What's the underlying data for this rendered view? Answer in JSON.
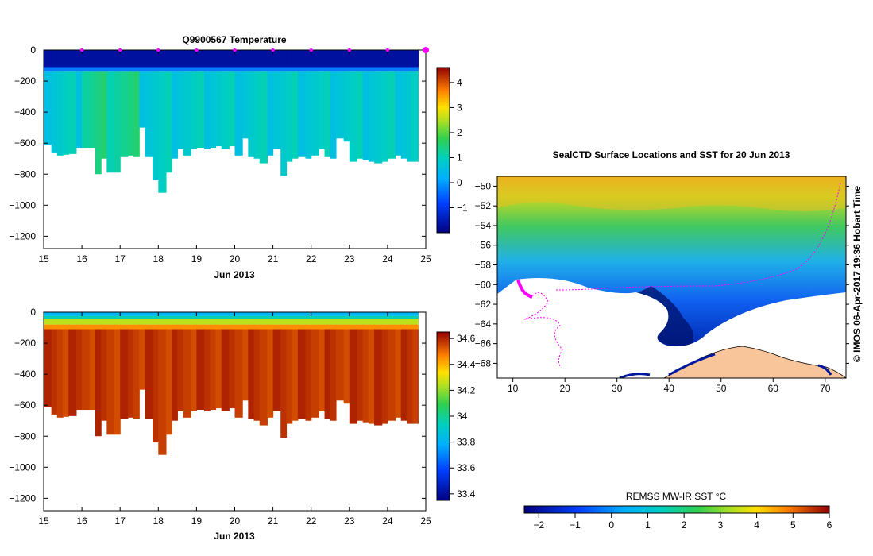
{
  "colors": {
    "land": "#f8c59a",
    "marker": "#ff00ff",
    "axis": "#000000"
  },
  "chart_data": [
    {
      "type": "heatmap",
      "title": "Q9900567  Temperature",
      "xlabel": "Jun 2013",
      "x_ticks": [
        "15",
        "16",
        "17",
        "18",
        "19",
        "20",
        "21",
        "22",
        "23",
        "24",
        "25"
      ],
      "xlim": [
        15,
        25
      ],
      "ylim": [
        -1280,
        0
      ],
      "y_ticks": [
        0,
        -200,
        -400,
        -600,
        -800,
        -1000,
        -1200
      ],
      "y_tick_labels": [
        "0",
        "−200",
        "−400",
        "−600",
        "−800",
        "−1000",
        "−1200"
      ],
      "profile_markers_days": [
        16,
        17,
        18,
        19,
        20,
        21,
        22,
        23,
        24,
        25
      ],
      "profile_times": [
        15.0,
        15.2,
        15.35,
        15.5,
        15.65,
        15.85,
        16.0,
        16.2,
        16.35,
        16.5,
        16.65,
        16.85,
        17.0,
        17.2,
        17.35,
        17.5,
        17.65,
        17.85,
        18.0,
        18.2,
        18.35,
        18.5,
        18.65,
        18.85,
        19.0,
        19.2,
        19.35,
        19.5,
        19.65,
        19.85,
        20.0,
        20.2,
        20.35,
        20.5,
        20.65,
        20.85,
        21.0,
        21.2,
        21.35,
        21.5,
        21.65,
        21.85,
        22.0,
        22.2,
        22.35,
        22.5,
        22.65,
        22.85,
        23.0,
        23.2,
        23.35,
        23.5,
        23.65,
        23.85,
        24.0,
        24.2,
        24.35,
        24.5,
        24.65
      ],
      "profile_max_depth": [
        610,
        660,
        680,
        675,
        670,
        630,
        630,
        630,
        800,
        700,
        790,
        790,
        690,
        680,
        690,
        500,
        690,
        840,
        920,
        790,
        700,
        640,
        680,
        640,
        630,
        640,
        630,
        620,
        640,
        620,
        680,
        570,
        690,
        700,
        730,
        680,
        640,
        810,
        720,
        700,
        690,
        700,
        680,
        640,
        690,
        700,
        570,
        590,
        720,
        700,
        710,
        720,
        730,
        720,
        700,
        680,
        700,
        720,
        720
      ],
      "surface_value": -1.7,
      "deep_value": 0.8,
      "colorbar": {
        "ticks": [
          4,
          3,
          2,
          1,
          0,
          -1
        ],
        "tick_labels": [
          "4",
          "3",
          "2",
          "1",
          "0",
          "−1"
        ],
        "range": [
          -2,
          4.6
        ]
      }
    },
    {
      "type": "heatmap",
      "title": "",
      "xlabel": "Jun 2013",
      "x_ticks": [
        "15",
        "16",
        "17",
        "18",
        "19",
        "20",
        "21",
        "22",
        "23",
        "24",
        "25"
      ],
      "xlim": [
        15,
        25
      ],
      "ylim": [
        -1280,
        0
      ],
      "y_ticks": [
        0,
        -200,
        -400,
        -600,
        -800,
        -1000,
        -1200
      ],
      "y_tick_labels": [
        "0",
        "−200",
        "−400",
        "−600",
        "−800",
        "−1000",
        "−1200"
      ],
      "surface_value": 33.85,
      "deep_value": 34.6,
      "colorbar": {
        "ticks": [
          34.6,
          34.4,
          34.2,
          34,
          33.8,
          33.6,
          33.4
        ],
        "tick_labels": [
          "34.6",
          "34.4",
          "34.2",
          "34",
          "33.8",
          "33.6",
          "33.4"
        ],
        "range": [
          33.35,
          34.65
        ]
      }
    },
    {
      "type": "heatmap",
      "title": "SealCTD Surface Locations and SST for 20 Jun 2013",
      "xlim": [
        7,
        74
      ],
      "ylim": [
        -69.5,
        -49
      ],
      "x_ticks": [
        10,
        20,
        30,
        40,
        50,
        60,
        70
      ],
      "x_tick_labels": [
        "10",
        "20",
        "30",
        "40",
        "50",
        "60",
        "70"
      ],
      "y_ticks": [
        -50,
        -52,
        -54,
        -56,
        -58,
        -60,
        -62,
        -64,
        -66,
        -68
      ],
      "y_tick_labels": [
        "−50",
        "−52",
        "−54",
        "−56",
        "−58",
        "−60",
        "−62",
        "−64",
        "−66",
        "−68"
      ],
      "colorbar_label": "REMSS MW-IR SST °C",
      "colorbar_ticks": [
        -2,
        -1,
        0,
        1,
        2,
        3,
        4,
        5,
        6
      ],
      "colorbar_tick_labels": [
        "−2",
        "−1",
        "0",
        "1",
        "2",
        "3",
        "4",
        "5",
        "6"
      ],
      "colorbar_range": [
        -2.4,
        6
      ],
      "credit": "© IMOS 06-Apr-2017 19:36 Hobart Time"
    }
  ]
}
